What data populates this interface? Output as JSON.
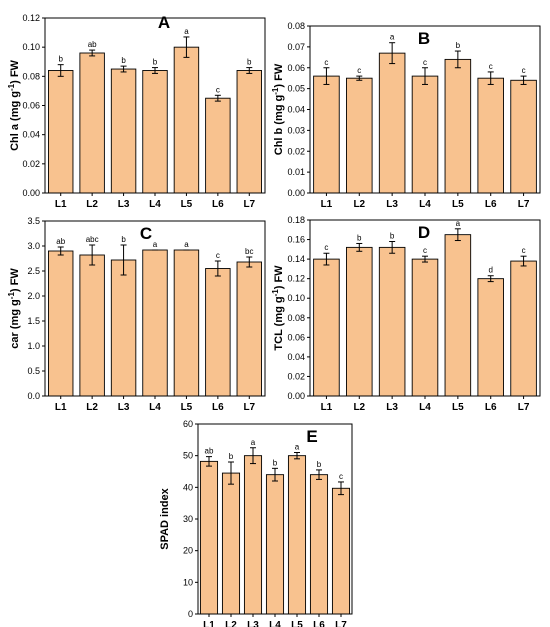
{
  "chart_data": [
    {
      "panel": "A",
      "type": "bar",
      "title": "A",
      "ylabel": "Chl a (mg g-1) FW",
      "ylabel_parts": [
        "Chl a (mg g",
        "-1",
        ") FW"
      ],
      "categories": [
        "L1",
        "L2",
        "L3",
        "L4",
        "L5",
        "L6",
        "L7"
      ],
      "values": [
        0.084,
        0.096,
        0.085,
        0.084,
        0.1,
        0.065,
        0.084
      ],
      "errors": [
        0.004,
        0.002,
        0.002,
        0.002,
        0.007,
        0.002,
        0.002
      ],
      "letters": [
        "b",
        "ab",
        "b",
        "b",
        "a",
        "c",
        "b"
      ],
      "yticks": [
        "0.00",
        "0.02",
        "0.04",
        "0.06",
        "0.08",
        "0.10",
        "0.12"
      ],
      "ylim": [
        0,
        0.12
      ],
      "bar_color": "#F8C28F"
    },
    {
      "panel": "B",
      "type": "bar",
      "title": "B",
      "ylabel": "Chl b (mg g-1) FW",
      "ylabel_parts": [
        "Chl b (mg g",
        "-1",
        ") FW"
      ],
      "categories": [
        "L1",
        "L2",
        "L3",
        "L4",
        "L5",
        "L6",
        "L7"
      ],
      "values": [
        0.056,
        0.055,
        0.067,
        0.056,
        0.064,
        0.055,
        0.054
      ],
      "errors": [
        0.004,
        0.001,
        0.005,
        0.004,
        0.004,
        0.003,
        0.002
      ],
      "letters": [
        "c",
        "c",
        "a",
        "c",
        "b",
        "c",
        "c"
      ],
      "yticks": [
        "0.00",
        "0.01",
        "0.02",
        "0.03",
        "0.04",
        "0.05",
        "0.06",
        "0.07",
        "0.08"
      ],
      "ylim": [
        0,
        0.08
      ],
      "bar_color": "#F8C28F"
    },
    {
      "panel": "C",
      "type": "bar",
      "title": "C",
      "ylabel": "car (mg g-1) FW",
      "ylabel_parts": [
        "car (mg g",
        "-1",
        ") FW"
      ],
      "categories": [
        "L1",
        "L2",
        "L3",
        "L4",
        "L5",
        "L6",
        "L7"
      ],
      "values": [
        2.9,
        2.82,
        2.72,
        2.92,
        2.92,
        2.55,
        2.68
      ],
      "errors": [
        0.08,
        0.2,
        0.3,
        0.0,
        0.0,
        0.15,
        0.1
      ],
      "letters": [
        "ab",
        "abc",
        "b",
        "a",
        "a",
        "c",
        "bc"
      ],
      "yticks": [
        "0.0",
        "0.5",
        "1.0",
        "1.5",
        "2.0",
        "2.5",
        "3.0",
        "3.5"
      ],
      "ylim": [
        0,
        3.5
      ],
      "bar_color": "#F8C28F"
    },
    {
      "panel": "D",
      "type": "bar",
      "title": "D",
      "ylabel": "TCL (mg g-1) FW",
      "ylabel_parts": [
        "TCL (mg g",
        "-1",
        ") FW"
      ],
      "categories": [
        "L1",
        "L2",
        "L3",
        "L4",
        "L5",
        "L6",
        "L7"
      ],
      "values": [
        0.14,
        0.152,
        0.152,
        0.14,
        0.165,
        0.12,
        0.138
      ],
      "errors": [
        0.006,
        0.004,
        0.006,
        0.003,
        0.006,
        0.003,
        0.005
      ],
      "letters": [
        "c",
        "b",
        "b",
        "c",
        "a",
        "d",
        "c"
      ],
      "yticks": [
        "0.00",
        "0.02",
        "0.04",
        "0.06",
        "0.08",
        "0.10",
        "0.12",
        "0.14",
        "0.16",
        "0.18"
      ],
      "ylim": [
        0,
        0.18
      ],
      "bar_color": "#F8C28F"
    },
    {
      "panel": "E",
      "type": "bar",
      "title": "E",
      "ylabel": "SPAD index",
      "ylabel_parts": [
        "SPAD index",
        "",
        ""
      ],
      "categories": [
        "L1",
        "L2",
        "L3",
        "L4",
        "L5",
        "L6",
        "L7"
      ],
      "values": [
        48.2,
        44.5,
        50.0,
        44.0,
        50.0,
        44.0,
        39.7
      ],
      "errors": [
        1.5,
        3.5,
        2.5,
        2.0,
        1.0,
        1.5,
        2.0
      ],
      "letters": [
        "ab",
        "b",
        "a",
        "b",
        "a",
        "b",
        "c"
      ],
      "yticks": [
        "0",
        "10",
        "20",
        "30",
        "40",
        "50",
        "60"
      ],
      "ylim": [
        0,
        60
      ],
      "bar_color": "#F8C28F"
    }
  ]
}
